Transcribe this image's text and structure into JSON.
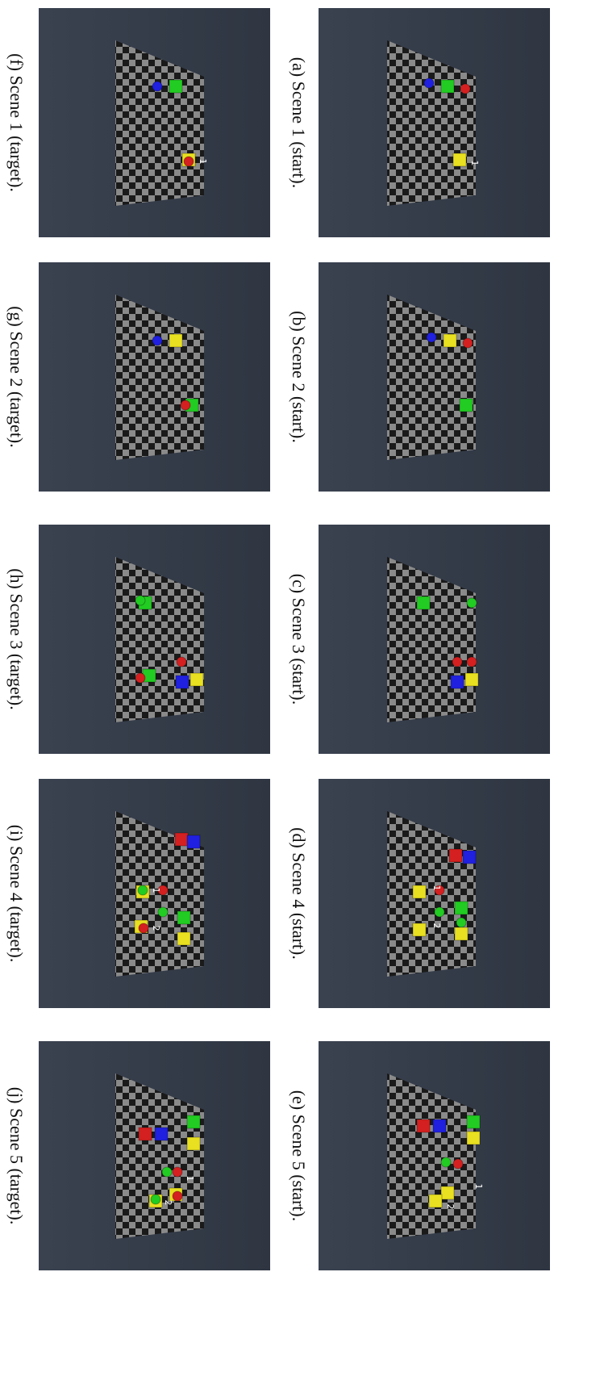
{
  "figure": {
    "panels": [
      {
        "caption": "(a) Scene 1 (start).",
        "markers": [
          "1"
        ]
      },
      {
        "caption": "(b) Scene 2 (start).",
        "markers": []
      },
      {
        "caption": "(c) Scene 3 (start).",
        "markers": []
      },
      {
        "caption": "(d) Scene 4 (start).",
        "markers": [
          "1",
          "2"
        ]
      },
      {
        "caption": "(e) Scene 5 (start).",
        "markers": [
          "1",
          "2"
        ]
      },
      {
        "caption": "(f) Scene 1 (target).",
        "markers": [
          "1"
        ]
      },
      {
        "caption": "(g) Scene 2 (target).",
        "markers": []
      },
      {
        "caption": "(h) Scene 3 (target).",
        "markers": []
      },
      {
        "caption": "(i) Scene 4 (target).",
        "markers": [
          "1",
          "2"
        ]
      },
      {
        "caption": "(j) Scene 5 (target).",
        "markers": [
          "1",
          "2"
        ]
      }
    ]
  }
}
